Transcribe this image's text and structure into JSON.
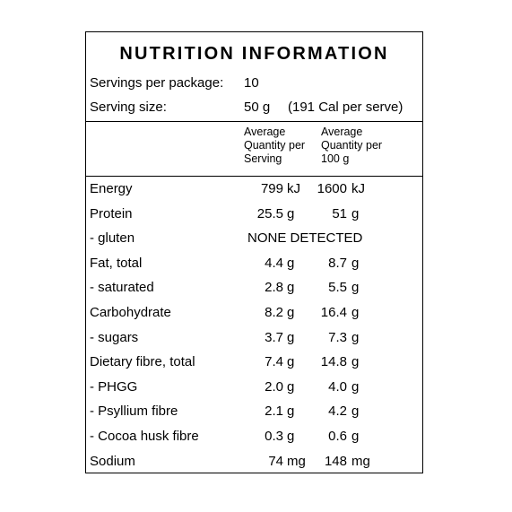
{
  "title": "NUTRITION INFORMATION",
  "servings": {
    "label": "Servings per package:",
    "value": "10"
  },
  "serving_size": {
    "label": "Serving size:",
    "value": "50 g",
    "energy_note": "(191 Cal per serve)"
  },
  "columns": {
    "per_serving": "Average\nQuantity per\nServing",
    "per_100g": "Average\nQuantity per\n100 g"
  },
  "rows": [
    {
      "name": "Energy",
      "serve_val": "799",
      "serve_unit": "kJ",
      "g100_val": "1600",
      "g100_unit": "kJ"
    },
    {
      "name": "Protein",
      "serve_val": "25.5",
      "serve_unit": "g",
      "g100_val": "51",
      "g100_unit": "g"
    },
    {
      "name": "- gluten",
      "note": "NONE DETECTED"
    },
    {
      "name": "Fat, total",
      "serve_val": "4.4",
      "serve_unit": "g",
      "g100_val": "8.7",
      "g100_unit": "g"
    },
    {
      "name": "- saturated",
      "serve_val": "2.8",
      "serve_unit": "g",
      "g100_val": "5.5",
      "g100_unit": "g"
    },
    {
      "name": "Carbohydrate",
      "serve_val": "8.2",
      "serve_unit": "g",
      "g100_val": "16.4",
      "g100_unit": "g"
    },
    {
      "name": "- sugars",
      "serve_val": "3.7",
      "serve_unit": "g",
      "g100_val": "7.3",
      "g100_unit": "g"
    },
    {
      "name": "Dietary fibre, total",
      "serve_val": "7.4",
      "serve_unit": "g",
      "g100_val": "14.8",
      "g100_unit": "g"
    },
    {
      "name": "- PHGG",
      "serve_val": "2.0",
      "serve_unit": "g",
      "g100_val": "4.0",
      "g100_unit": "g"
    },
    {
      "name": "- Psyllium fibre",
      "serve_val": "2.1",
      "serve_unit": "g",
      "g100_val": "4.2",
      "g100_unit": "g"
    },
    {
      "name": "- Cocoa husk fibre",
      "serve_val": "0.3",
      "serve_unit": "g",
      "g100_val": "0.6",
      "g100_unit": "g"
    },
    {
      "name": "Sodium",
      "serve_val": "74",
      "serve_unit": "mg",
      "g100_val": "148",
      "g100_unit": "mg"
    }
  ]
}
